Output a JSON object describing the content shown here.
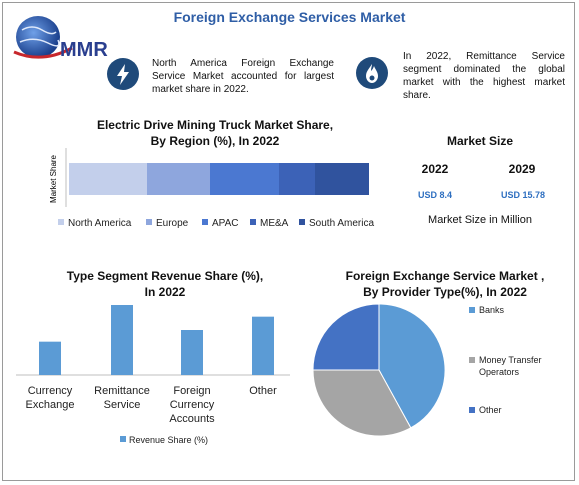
{
  "brand": {
    "logo_text": "MMR"
  },
  "page_title": "Foreign Exchange Services Market",
  "info": {
    "left_icon": "lightning-icon",
    "left_text": "North America Foreign Exchange Service Market accounted for largest market share in 2022.",
    "right_icon": "flame-icon",
    "right_text": "In 2022, Remittance Service segment dominated the global market with the highest market share."
  },
  "market_size": {
    "title": "Market Size",
    "year1": "2022",
    "year2": "2029",
    "value1": "USD 8.4",
    "value2": "USD 15.78",
    "unit_label": "Market Size in Million"
  },
  "colors": {
    "title_blue": "#2f5ea6",
    "value_blue": "#2e6fc0",
    "north_america": "#c3cfeb",
    "europe": "#8ea6dd",
    "apac": "#4b78d1",
    "mea": "#3c62b7",
    "south_america": "#30539e",
    "bar_blue": "#5b9bd5",
    "pie_grey": "#a5a5a5",
    "pie_blue_dark": "#4472c4",
    "icon_navy": "#1f4a7a"
  },
  "chart_data": [
    {
      "type": "bar",
      "orientation": "horizontal-stacked",
      "title": "Electric Drive Mining Truck Market Share,\nBy Region (%), In 2022",
      "ylabel": "Market Share",
      "series": [
        {
          "name": "North America",
          "values": [
            26
          ]
        },
        {
          "name": "Europe",
          "values": [
            21
          ]
        },
        {
          "name": "APAC",
          "values": [
            23
          ]
        },
        {
          "name": "ME&A",
          "values": [
            12
          ]
        },
        {
          "name": "South America",
          "values": [
            18
          ]
        }
      ],
      "legend": "bottom",
      "grid": false
    },
    {
      "type": "bar",
      "title": "Type Segment Revenue Share (%),\nIn 2022",
      "categories": [
        "Currency\nExchange",
        "Remittance\nService",
        "Foreign\nCurrency\nAccounts",
        "Other"
      ],
      "series": [
        {
          "name": "Revenue Share (%)",
          "values": [
            20,
            42,
            27,
            35
          ]
        }
      ],
      "ylim": [
        0,
        45
      ],
      "legend": "bottom",
      "grid": false
    },
    {
      "type": "pie",
      "title": "Foreign Exchange Service Market ,\nBy Provider Type(%), In 2022",
      "labels": [
        "Banks",
        "Money Transfer\nOperators",
        "Other"
      ],
      "values": [
        42,
        33,
        25
      ],
      "legend": "right"
    }
  ]
}
